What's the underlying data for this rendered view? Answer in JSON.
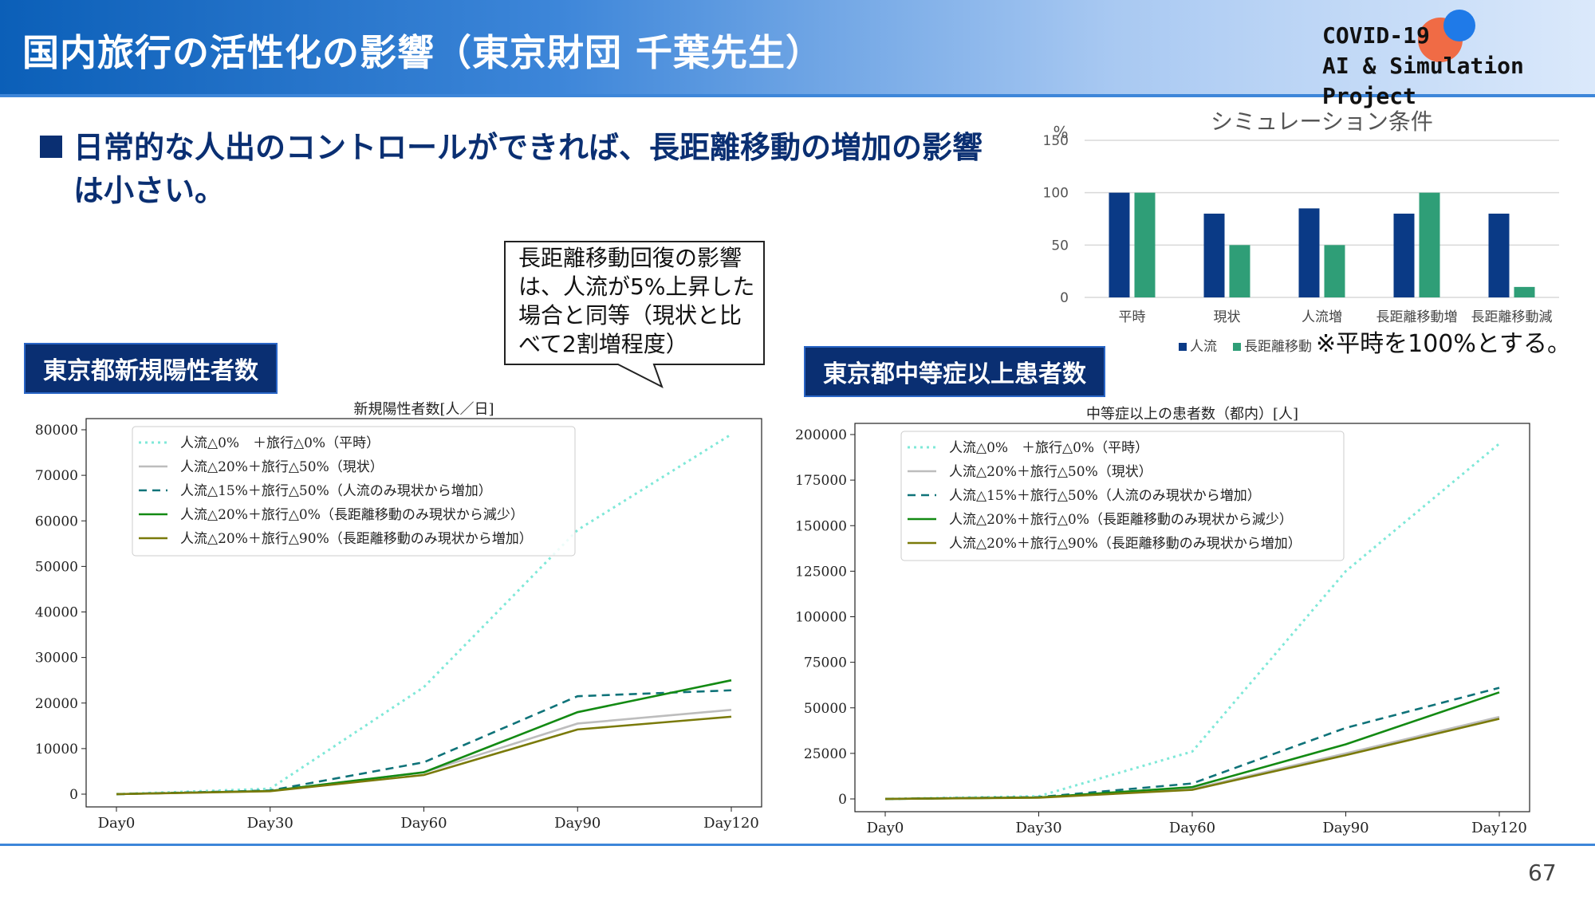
{
  "slide": {
    "title": "国内旅行の活性化の影響（東京財団 千葉先生）",
    "project_line1": "COVID-19",
    "project_line2": "AI & Simulation Project",
    "bullet": "日常的な人出のコントロールができれば、長距離移動の増加の影響は小さい。",
    "callout": "長距離移動回復の影響は、人流が5%上昇した場合と同等（現状と比べて2割増程度）",
    "left_tag": "東京都新規陽性者数",
    "right_tag": "東京都中等症以上患者数",
    "note": "※平時を100%とする。",
    "page_number": "67"
  },
  "colors": {
    "header_blue": "#0b5fb8",
    "navy": "#0a2f72",
    "series_normal": "#7fe8d8",
    "series_current": "#bdbdbd",
    "series_flow15": "#0f7379",
    "series_travel0": "#138a13",
    "series_travel90": "#7a7a0a",
    "bar_flow": "#0a3a86",
    "bar_travel": "#2f9e77"
  },
  "chart_data": [
    {
      "type": "bar",
      "title": "シミュレーション条件",
      "ylabel": "%",
      "ylim": [
        0,
        150
      ],
      "yticks": [
        0,
        50,
        100,
        150
      ],
      "categories": [
        "平時",
        "現状",
        "人流増",
        "長距離移動増",
        "長距離移動減"
      ],
      "series": [
        {
          "name": "人流",
          "color": "#0a3a86",
          "values": [
            100,
            80,
            85,
            80,
            80
          ]
        },
        {
          "name": "長距離移動",
          "color": "#2f9e77",
          "values": [
            100,
            50,
            50,
            100,
            10
          ]
        }
      ],
      "grid": true,
      "legend": "bottom"
    },
    {
      "type": "line",
      "title": "新規陽性者数[人／日]",
      "x": [
        "Day0",
        "Day30",
        "Day60",
        "Day90",
        "Day120"
      ],
      "ylim": [
        0,
        80000
      ],
      "yticks": [
        0,
        10000,
        20000,
        30000,
        40000,
        50000,
        60000,
        70000,
        80000
      ],
      "legend": "top-left",
      "series": [
        {
          "name": "人流△0%　＋旅行△0%（平時）",
          "color": "#7fe8d8",
          "dash": "dot",
          "values": [
            0,
            1200,
            23500,
            58000,
            79000
          ]
        },
        {
          "name": "人流△20%＋旅行△50%（現状）",
          "color": "#bdbdbd",
          "dash": "solid",
          "values": [
            0,
            700,
            4800,
            15500,
            18500
          ]
        },
        {
          "name": "人流△15%＋旅行△50%（人流のみ現状から増加）",
          "color": "#0f7379",
          "dash": "dash",
          "values": [
            0,
            800,
            7000,
            21500,
            22800
          ]
        },
        {
          "name": "人流△20%＋旅行△0%（長距離移動のみ現状から減少）",
          "color": "#138a13",
          "dash": "solid",
          "values": [
            0,
            700,
            4800,
            18000,
            25000
          ]
        },
        {
          "name": "人流△20%＋旅行△90%（長距離移動のみ現状から増加）",
          "color": "#7a7a0a",
          "dash": "solid",
          "values": [
            0,
            650,
            4200,
            14200,
            17000
          ]
        }
      ]
    },
    {
      "type": "line",
      "title": "中等症以上の患者数（都内）[人]",
      "x": [
        "Day0",
        "Day30",
        "Day60",
        "Day90",
        "Day120"
      ],
      "ylim": [
        0,
        200000
      ],
      "yticks": [
        0,
        25000,
        50000,
        75000,
        100000,
        125000,
        150000,
        175000,
        200000
      ],
      "legend": "top-left",
      "series": [
        {
          "name": "人流△0%　＋旅行△0%（平時）",
          "color": "#7fe8d8",
          "dash": "dot",
          "values": [
            0,
            1500,
            26000,
            125000,
            195000
          ]
        },
        {
          "name": "人流△20%＋旅行△50%（現状）",
          "color": "#bdbdbd",
          "dash": "solid",
          "values": [
            0,
            800,
            5500,
            25000,
            45000
          ]
        },
        {
          "name": "人流△15%＋旅行△50%（人流のみ現状から増加）",
          "color": "#0f7379",
          "dash": "dash",
          "values": [
            0,
            1000,
            8500,
            39000,
            61000
          ]
        },
        {
          "name": "人流△20%＋旅行△0%（長距離移動のみ現状から減少）",
          "color": "#138a13",
          "dash": "solid",
          "values": [
            0,
            800,
            6500,
            30000,
            58500
          ]
        },
        {
          "name": "人流△20%＋旅行△90%（長距離移動のみ現状から増加）",
          "color": "#7a7a0a",
          "dash": "solid",
          "values": [
            0,
            700,
            5000,
            24000,
            44000
          ]
        }
      ]
    }
  ]
}
